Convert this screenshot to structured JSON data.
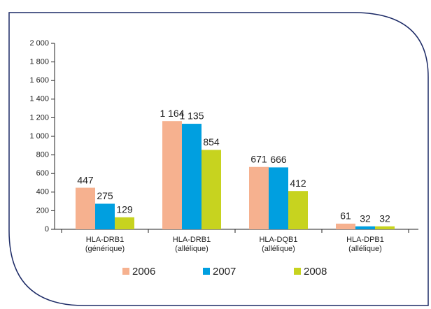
{
  "chart_data": {
    "type": "bar",
    "categories": [
      [
        "HLA-DRB1",
        "(générique)"
      ],
      [
        "HLA-DRB1",
        "(allélique)"
      ],
      [
        "HLA-DQB1",
        "(allélique)"
      ],
      [
        "HLA-DPB1",
        "(allélique)"
      ]
    ],
    "series": [
      {
        "name": "2006",
        "color": "#f6b18f",
        "values": [
          447,
          1164,
          671,
          61
        ],
        "value_labels": [
          "447",
          "1 164",
          "671",
          "61"
        ]
      },
      {
        "name": "2007",
        "color": "#009fe0",
        "values": [
          275,
          1135,
          666,
          32
        ],
        "value_labels": [
          "275",
          "1 135",
          "666",
          "32"
        ]
      },
      {
        "name": "2008",
        "color": "#c7d31f",
        "values": [
          129,
          854,
          412,
          32
        ],
        "value_labels": [
          "129",
          "854",
          "412",
          "32"
        ]
      }
    ],
    "ylim": [
      0,
      2000
    ],
    "yticks": [
      0,
      200,
      400,
      600,
      800,
      {
        "value": 1000,
        "label": "1 000"
      },
      {
        "value": 1200,
        "label": "1 200"
      },
      {
        "value": 1400,
        "label": "1 400"
      },
      {
        "value": 1600,
        "label": "1 600"
      },
      {
        "value": 1800,
        "label": "1 800"
      },
      {
        "value": 2000,
        "label": "2 000"
      }
    ],
    "legend": "bottom"
  }
}
